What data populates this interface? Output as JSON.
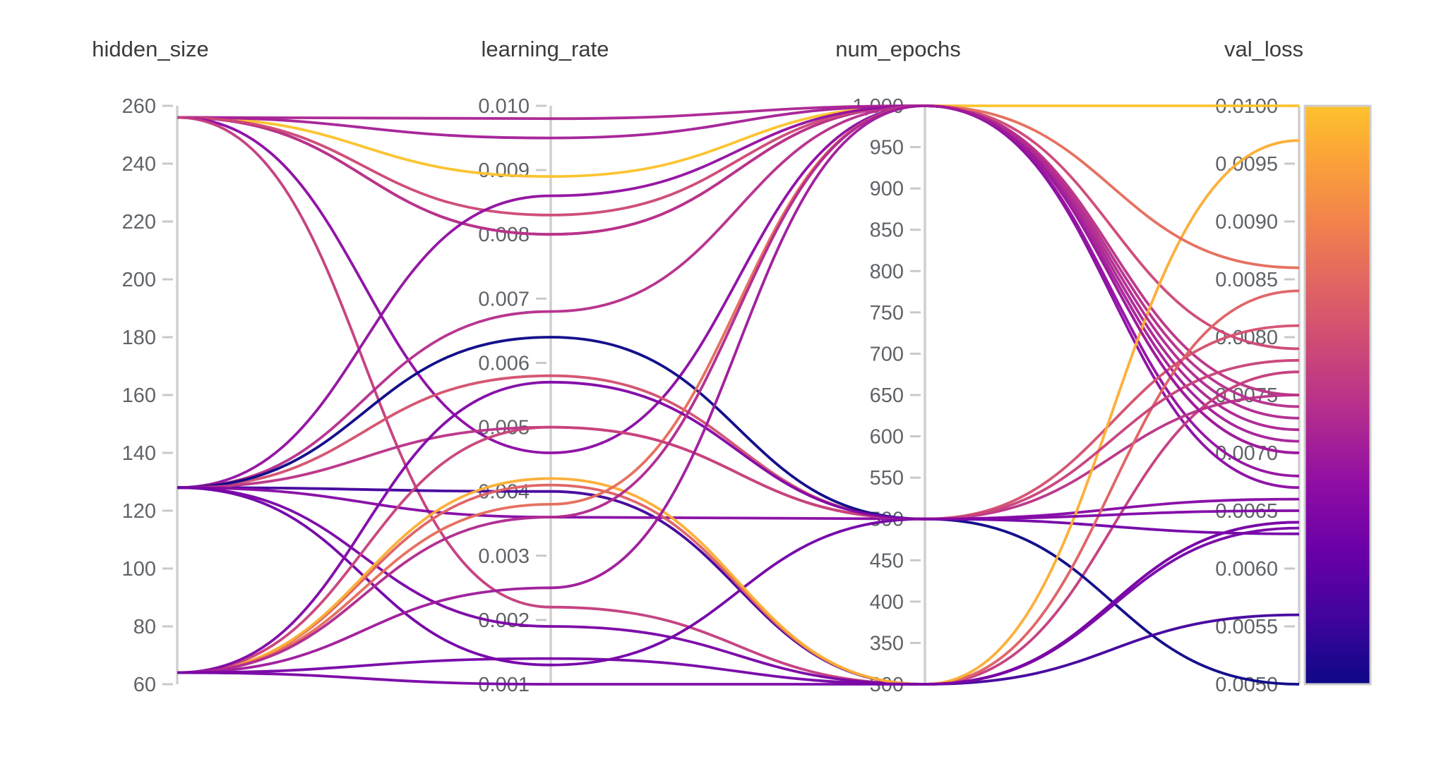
{
  "chart_data": {
    "type": "parallel-coordinates",
    "title": "",
    "color": {
      "by": "val_loss",
      "min": 0.005,
      "max": 0.01,
      "colormap": "plasma-truncated",
      "scale_stops": [
        {
          "t": 0.0,
          "hex": "#0d0887"
        },
        {
          "t": 0.115,
          "hex": "#41049d"
        },
        {
          "t": 0.23,
          "hex": "#6a00a8"
        },
        {
          "t": 0.345,
          "hex": "#8f0da4"
        },
        {
          "t": 0.46,
          "hex": "#b12a90"
        },
        {
          "t": 0.575,
          "hex": "#cc4778"
        },
        {
          "t": 0.69,
          "hex": "#e16462"
        },
        {
          "t": 0.805,
          "hex": "#f2844b"
        },
        {
          "t": 0.92,
          "hex": "#fca636"
        },
        {
          "t": 1.0,
          "hex": "#fcc22c"
        }
      ],
      "axis_line_color": "#cfcfcf",
      "tick_text_color": "#5f6368",
      "title_text_color": "#3b3b3b"
    },
    "axes": [
      {
        "name": "hidden_size",
        "min": 60,
        "max": 260,
        "tick_labels": [
          "260",
          "240",
          "220",
          "200",
          "180",
          "160",
          "140",
          "120",
          "100",
          "80",
          "60"
        ],
        "tick_values": [
          260,
          240,
          220,
          200,
          180,
          160,
          140,
          120,
          100,
          80,
          60
        ]
      },
      {
        "name": "learning_rate",
        "min": 0.001,
        "max": 0.01,
        "tick_labels": [
          "0.010",
          "0.009",
          "0.008",
          "0.007",
          "0.006",
          "0.005",
          "0.004",
          "0.003",
          "0.002",
          "0.001"
        ],
        "tick_values": [
          0.01,
          0.009,
          0.008,
          0.007,
          0.006,
          0.005,
          0.004,
          0.003,
          0.002,
          0.001
        ]
      },
      {
        "name": "num_epochs",
        "min": 300,
        "max": 1000,
        "tick_labels": [
          "1,000",
          "950",
          "900",
          "850",
          "800",
          "750",
          "700",
          "650",
          "600",
          "550",
          "500",
          "450",
          "400",
          "350",
          "300"
        ],
        "tick_values": [
          1000,
          950,
          900,
          850,
          800,
          750,
          700,
          650,
          600,
          550,
          500,
          450,
          400,
          350,
          300
        ]
      },
      {
        "name": "val_loss",
        "min": 0.005,
        "max": 0.01,
        "tick_labels": [
          "0.0100",
          "0.0095",
          "0.0090",
          "0.0085",
          "0.0080",
          "0.0075",
          "0.0070",
          "0.0065",
          "0.0060",
          "0.0055",
          "0.0050"
        ],
        "tick_values": [
          0.01,
          0.0095,
          0.009,
          0.0085,
          0.008,
          0.0075,
          0.007,
          0.0065,
          0.006,
          0.0055,
          0.005
        ]
      }
    ],
    "runs": [
      {
        "hidden_size": 256,
        "learning_rate": 0.0089,
        "num_epochs": 1000,
        "val_loss": 0.01
      },
      {
        "hidden_size": 256,
        "learning_rate": 0.0098,
        "num_epochs": 1000,
        "val_loss": 0.0072
      },
      {
        "hidden_size": 256,
        "learning_rate": 0.0095,
        "num_epochs": 1000,
        "val_loss": 0.0071
      },
      {
        "hidden_size": 256,
        "learning_rate": 0.008,
        "num_epochs": 1000,
        "val_loss": 0.007
      },
      {
        "hidden_size": 256,
        "learning_rate": 0.008,
        "num_epochs": 1000,
        "val_loss": 0.0075
      },
      {
        "hidden_size": 256,
        "learning_rate": 0.0083,
        "num_epochs": 1000,
        "val_loss": 0.0079
      },
      {
        "hidden_size": 256,
        "learning_rate": 0.0046,
        "num_epochs": 1000,
        "val_loss": 0.0067
      },
      {
        "hidden_size": 256,
        "learning_rate": 0.0022,
        "num_epochs": 300,
        "val_loss": 0.0077
      },
      {
        "hidden_size": 128,
        "learning_rate": 0.0086,
        "num_epochs": 1000,
        "val_loss": 0.0068
      },
      {
        "hidden_size": 128,
        "learning_rate": 0.0068,
        "num_epochs": 1000,
        "val_loss": 0.0074
      },
      {
        "hidden_size": 128,
        "learning_rate": 0.0058,
        "num_epochs": 500,
        "val_loss": 0.0081
      },
      {
        "hidden_size": 128,
        "learning_rate": 0.0064,
        "num_epochs": 500,
        "val_loss": 0.005
      },
      {
        "hidden_size": 128,
        "learning_rate": 0.004,
        "num_epochs": 300,
        "val_loss": 0.0056
      },
      {
        "hidden_size": 128,
        "learning_rate": 0.005,
        "num_epochs": 500,
        "val_loss": 0.0075
      },
      {
        "hidden_size": 128,
        "learning_rate": 0.0036,
        "num_epochs": 500,
        "val_loss": 0.0066
      },
      {
        "hidden_size": 128,
        "learning_rate": 0.0019,
        "num_epochs": 300,
        "val_loss": 0.0064
      },
      {
        "hidden_size": 128,
        "learning_rate": 0.0013,
        "num_epochs": 500,
        "val_loss": 0.0063
      },
      {
        "hidden_size": 64,
        "learning_rate": 0.0041,
        "num_epochs": 300,
        "val_loss": 0.0084
      },
      {
        "hidden_size": 64,
        "learning_rate": 0.0042,
        "num_epochs": 300,
        "val_loss": 0.0097
      },
      {
        "hidden_size": 64,
        "learning_rate": 0.0038,
        "num_epochs": 1000,
        "val_loss": 0.0086
      },
      {
        "hidden_size": 64,
        "learning_rate": 0.005,
        "num_epochs": 500,
        "val_loss": 0.0078
      },
      {
        "hidden_size": 64,
        "learning_rate": 0.0057,
        "num_epochs": 500,
        "val_loss": 0.0065
      },
      {
        "hidden_size": 64,
        "learning_rate": 0.0036,
        "num_epochs": 1000,
        "val_loss": 0.0073
      },
      {
        "hidden_size": 64,
        "learning_rate": 0.0025,
        "num_epochs": 1000,
        "val_loss": 0.007
      },
      {
        "hidden_size": 64,
        "learning_rate": 0.0014,
        "num_epochs": 300,
        "val_loss": 0.00635
      },
      {
        "hidden_size": 64,
        "learning_rate": 0.001,
        "num_epochs": 300,
        "val_loss": 0.0064
      }
    ]
  }
}
